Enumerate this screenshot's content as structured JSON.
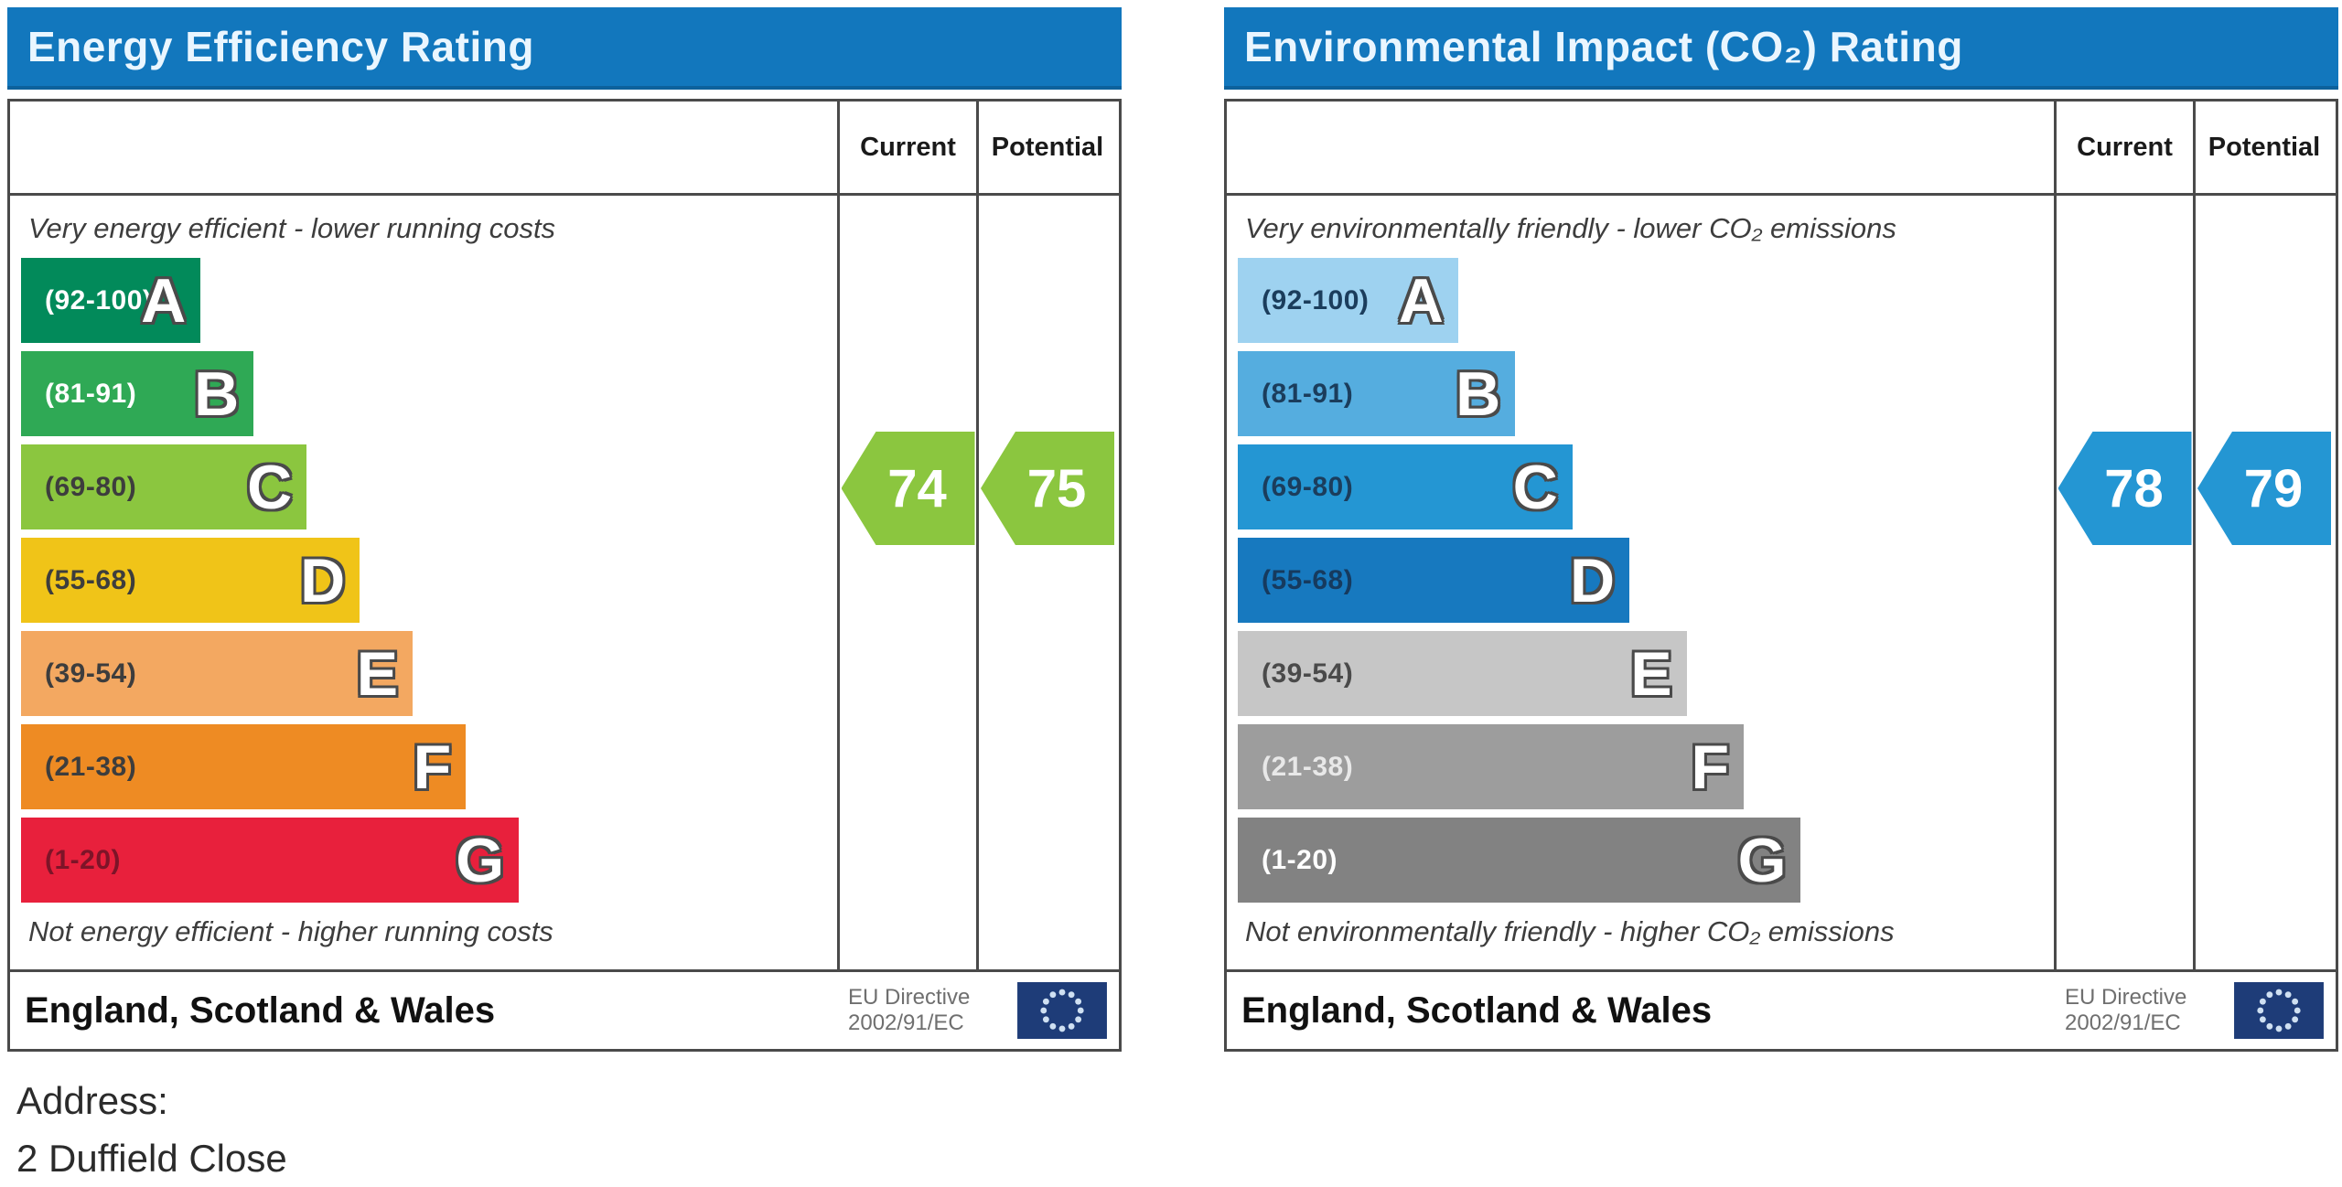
{
  "charts": [
    {
      "title": "Energy Efficiency Rating",
      "columns": {
        "current": "Current",
        "potential": "Potential"
      },
      "top_note": "Very energy efficient - lower running costs",
      "bottom_note": "Not energy efficient - higher running costs",
      "bands": [
        {
          "range": "(92-100)",
          "letter": "A",
          "color": "#028a5a",
          "label_color": "#ffffff"
        },
        {
          "range": "(81-91)",
          "letter": "B",
          "color": "#2fa955",
          "label_color": "#ffffff"
        },
        {
          "range": "(69-80)",
          "letter": "C",
          "color": "#8bc63f",
          "label_color": "#3d3d3d"
        },
        {
          "range": "(55-68)",
          "letter": "D",
          "color": "#f0c418",
          "label_color": "#3d3d3d"
        },
        {
          "range": "(39-54)",
          "letter": "E",
          "color": "#f3a861",
          "label_color": "#3d3d3d"
        },
        {
          "range": "(21-38)",
          "letter": "F",
          "color": "#ee8b23",
          "label_color": "#3d3d3d"
        },
        {
          "range": "(1-20)",
          "letter": "G",
          "color": "#e8203c",
          "label_color": "#7d1428"
        }
      ],
      "current": {
        "value": "74",
        "color": "#8bc63f"
      },
      "potential": {
        "value": "75",
        "color": "#8bc63f"
      },
      "footer": {
        "region": "England, Scotland & Wales",
        "directive_line1": "EU Directive",
        "directive_line2": "2002/91/EC"
      }
    },
    {
      "title": "Environmental Impact (CO₂) Rating",
      "columns": {
        "current": "Current",
        "potential": "Potential"
      },
      "top_note": "Very environmentally friendly - lower CO₂ emissions",
      "bottom_note": "Not environmentally friendly - higher CO₂ emissions",
      "bands": [
        {
          "range": "(92-100)",
          "letter": "A",
          "color": "#9ed2f0",
          "label_color": "#1b3d5c"
        },
        {
          "range": "(81-91)",
          "letter": "B",
          "color": "#55addf",
          "label_color": "#1b3d5c"
        },
        {
          "range": "(69-80)",
          "letter": "C",
          "color": "#2496d3",
          "label_color": "#1b3d5c"
        },
        {
          "range": "(55-68)",
          "letter": "D",
          "color": "#1779bf",
          "label_color": "#163a5e"
        },
        {
          "range": "(39-54)",
          "letter": "E",
          "color": "#c6c6c6",
          "label_color": "#4a4a4a"
        },
        {
          "range": "(21-38)",
          "letter": "F",
          "color": "#9d9d9d",
          "label_color": "#e8e8e8"
        },
        {
          "range": "(1-20)",
          "letter": "G",
          "color": "#828282",
          "label_color": "#ffffff"
        }
      ],
      "current": {
        "value": "78",
        "color": "#2496d3"
      },
      "potential": {
        "value": "79",
        "color": "#2496d3"
      },
      "footer": {
        "region": "England, Scotland & Wales",
        "directive_line1": "EU Directive",
        "directive_line2": "2002/91/EC"
      }
    }
  ],
  "address": {
    "label": "Address:",
    "line1": "2 Duffield Close"
  },
  "chart_data": [
    {
      "type": "bar",
      "title": "Energy Efficiency Rating",
      "categories": [
        "A (92-100)",
        "B (81-91)",
        "C (69-80)",
        "D (55-68)",
        "E (39-54)",
        "F (21-38)",
        "G (1-20)"
      ],
      "scale_range": [
        1,
        100
      ],
      "current": 74,
      "current_band": "C",
      "potential": 75,
      "potential_band": "C",
      "top_annotation": "Very energy efficient - lower running costs",
      "bottom_annotation": "Not energy efficient - higher running costs",
      "region": "England, Scotland & Wales",
      "directive": "EU Directive 2002/91/EC"
    },
    {
      "type": "bar",
      "title": "Environmental Impact (CO₂) Rating",
      "categories": [
        "A (92-100)",
        "B (81-91)",
        "C (69-80)",
        "D (55-68)",
        "E (39-54)",
        "F (21-38)",
        "G (1-20)"
      ],
      "scale_range": [
        1,
        100
      ],
      "current": 78,
      "current_band": "C",
      "potential": 79,
      "potential_band": "C",
      "top_annotation": "Very environmentally friendly - lower CO₂ emissions",
      "bottom_annotation": "Not environmentally friendly - higher CO₂ emissions",
      "region": "England, Scotland & Wales",
      "directive": "EU Directive 2002/91/EC"
    }
  ]
}
